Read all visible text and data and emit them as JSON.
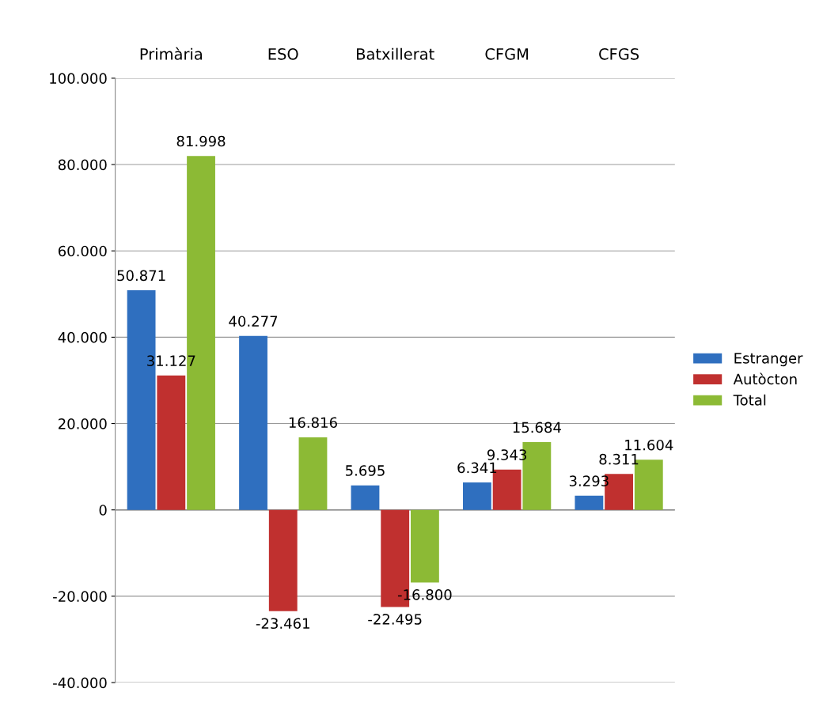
{
  "chart_data": {
    "type": "bar",
    "categories": [
      "Primària",
      "ESO",
      "Batxillerat",
      "CFGM",
      "CFGS"
    ],
    "series": [
      {
        "name": "Estranger",
        "color": "#2f6fbf",
        "values": [
          50871,
          40277,
          5695,
          6341,
          3293
        ],
        "value_labels": [
          "50.871",
          "40.277",
          "5.695",
          "6.341",
          "3.293"
        ]
      },
      {
        "name": "Autòcton",
        "color": "#c0302f",
        "values": [
          31127,
          -23461,
          -22495,
          9343,
          8311
        ],
        "value_labels": [
          "31.127",
          "-23.461",
          "-22.495",
          "9.343",
          "8.311"
        ]
      },
      {
        "name": "Total",
        "color": "#8cba35",
        "values": [
          81998,
          16816,
          -16800,
          15684,
          11604
        ],
        "value_labels": [
          "81.998",
          "16.816",
          "-16.800",
          "15.684",
          "11.604"
        ]
      }
    ],
    "ylim": [
      -40000,
      100000
    ],
    "yticks": [
      {
        "value": -40000,
        "label": "-40.000"
      },
      {
        "value": -20000,
        "label": "-20.000"
      },
      {
        "value": 0,
        "label": "0"
      },
      {
        "value": 20000,
        "label": "20.000"
      },
      {
        "value": 40000,
        "label": "40.000"
      },
      {
        "value": 60000,
        "label": "60.000"
      },
      {
        "value": 80000,
        "label": "80.000"
      },
      {
        "value": 100000,
        "label": "100.000"
      }
    ],
    "grid": "y",
    "legend": "right"
  }
}
